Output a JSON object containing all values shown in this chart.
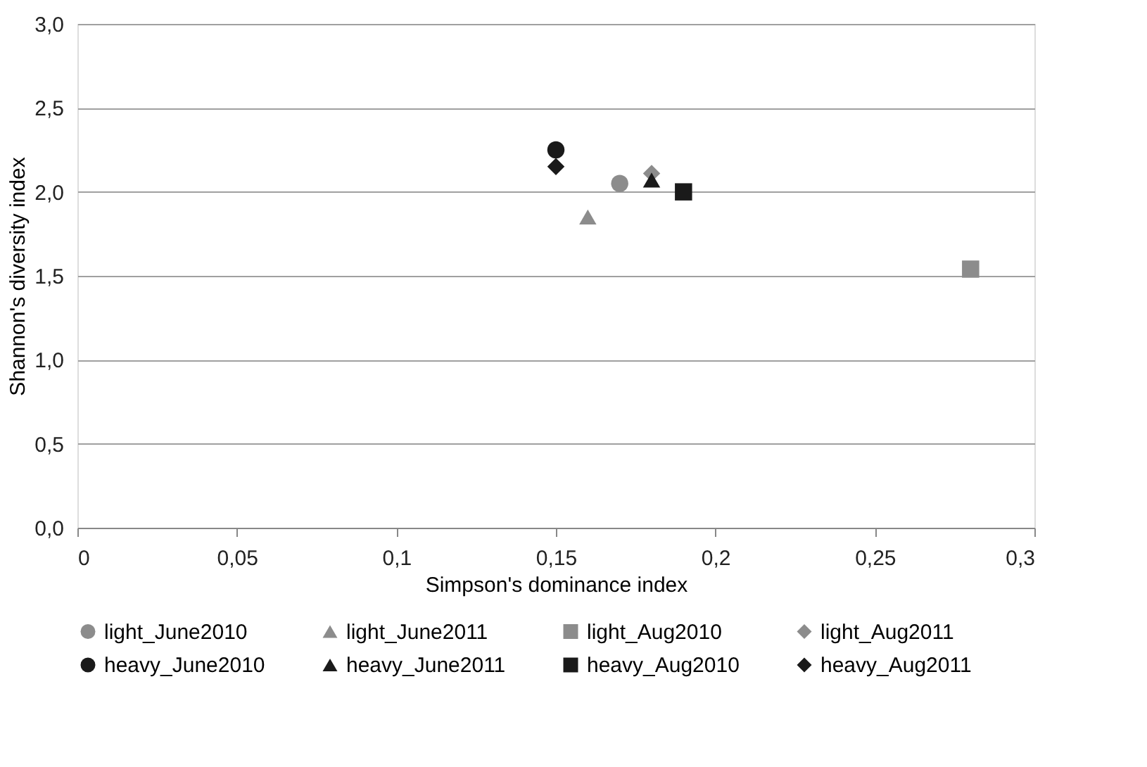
{
  "chart_data": {
    "type": "scatter",
    "xlabel": "Simpson's dominance index",
    "ylabel": "Shannon's diversity index",
    "xlim": [
      0,
      0.3
    ],
    "ylim": [
      0,
      3.0
    ],
    "xticks": [
      0,
      {
        "value": 0.05,
        "label": "0,05"
      },
      {
        "value": 0.1,
        "label": "0,1"
      },
      {
        "value": 0.15,
        "label": "0,15"
      },
      {
        "value": 0.2,
        "label": "0,2"
      },
      {
        "value": 0.25,
        "label": "0,25"
      },
      {
        "value": 0.3,
        "label": "0,3"
      }
    ],
    "yticks": [
      {
        "value": 0,
        "label": "0,0"
      },
      {
        "value": 0.5,
        "label": "0,5"
      },
      {
        "value": 1.0,
        "label": "1,0"
      },
      {
        "value": 1.5,
        "label": "1,5"
      },
      {
        "value": 2.0,
        "label": "2,0"
      },
      {
        "value": 2.5,
        "label": "2,5"
      },
      {
        "value": 3.0,
        "label": "3,0"
      }
    ],
    "grid": "y",
    "legend": "bottom",
    "series": [
      {
        "name": "light_June2010",
        "color": "#8c8c8c",
        "marker": "circle",
        "x": [
          0.17
        ],
        "values": [
          2.05
        ]
      },
      {
        "name": "light_June2011",
        "color": "#8c8c8c",
        "marker": "triangle",
        "x": [
          0.16
        ],
        "values": [
          1.85
        ]
      },
      {
        "name": "light_Aug2010",
        "color": "#8c8c8c",
        "marker": "square",
        "x": [
          0.28
        ],
        "values": [
          1.54
        ]
      },
      {
        "name": "light_Aug2011",
        "color": "#8c8c8c",
        "marker": "diamond",
        "x": [
          0.18
        ],
        "values": [
          2.11
        ]
      },
      {
        "name": "heavy_June2010",
        "color": "#1a1a1a",
        "marker": "circle",
        "x": [
          0.15
        ],
        "values": [
          2.25
        ]
      },
      {
        "name": "heavy_June2011",
        "color": "#1a1a1a",
        "marker": "triangle",
        "x": [
          0.18
        ],
        "values": [
          2.07
        ]
      },
      {
        "name": "heavy_Aug2010",
        "color": "#1a1a1a",
        "marker": "square",
        "x": [
          0.19
        ],
        "values": [
          2.0
        ]
      },
      {
        "name": "heavy_Aug2011",
        "color": "#1a1a1a",
        "marker": "diamond",
        "x": [
          0.15
        ],
        "values": [
          2.15
        ]
      }
    ]
  }
}
